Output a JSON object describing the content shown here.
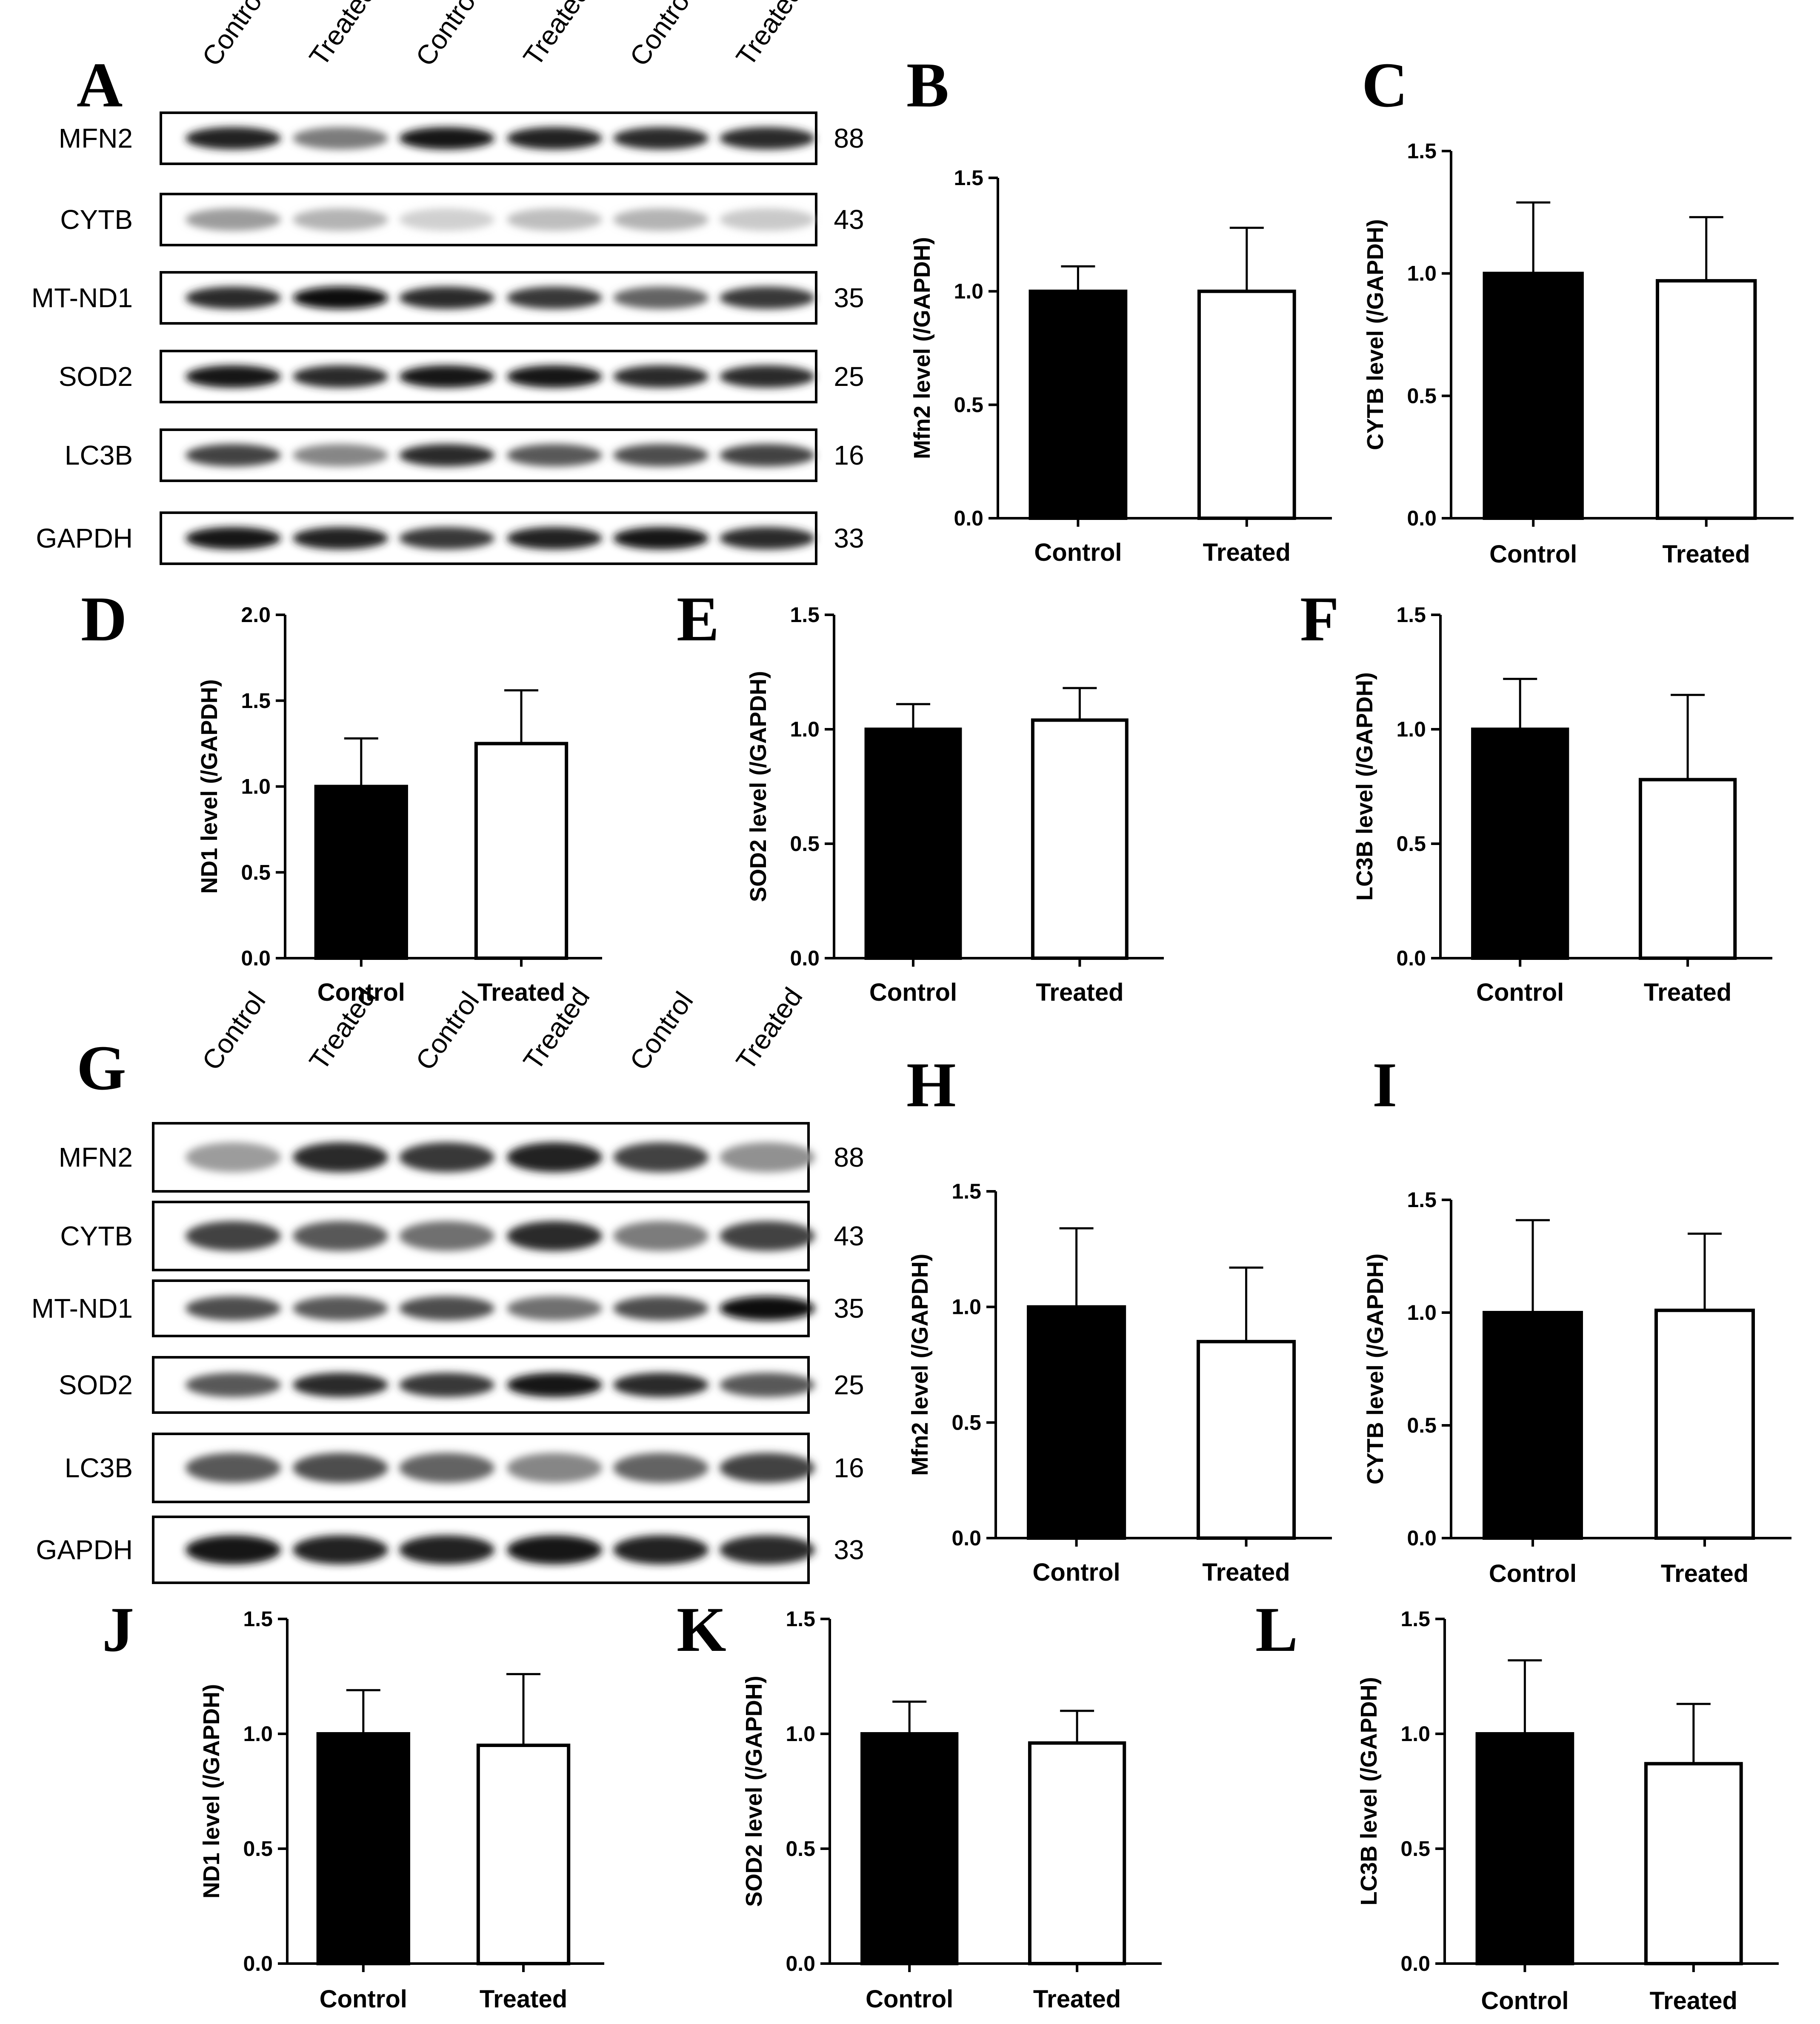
{
  "colors": {
    "control_fill": "#000000",
    "treated_fill": "#ffffff",
    "axis": "#000000"
  },
  "blots": [
    {
      "letter": "A",
      "lanes": [
        "Control",
        "Treated",
        "Control",
        "Treated",
        "Control",
        "Treated"
      ],
      "rows": [
        {
          "protein": "MFN2",
          "mw": "88",
          "intensity": [
            0.9,
            0.5,
            0.95,
            0.9,
            0.85,
            0.85
          ]
        },
        {
          "protein": "CYTB",
          "mw": "43",
          "intensity": [
            0.35,
            0.25,
            0.12,
            0.2,
            0.25,
            0.15
          ]
        },
        {
          "protein": "MT-ND1",
          "mw": "35",
          "intensity": [
            0.85,
            1.0,
            0.85,
            0.8,
            0.6,
            0.8
          ]
        },
        {
          "protein": "SOD2",
          "mw": "25",
          "intensity": [
            0.95,
            0.85,
            0.95,
            0.95,
            0.85,
            0.85
          ]
        },
        {
          "protein": "LC3B",
          "mw": "16",
          "intensity": [
            0.75,
            0.45,
            0.85,
            0.65,
            0.7,
            0.75
          ]
        },
        {
          "protein": "GAPDH",
          "mw": "33",
          "intensity": [
            0.95,
            0.9,
            0.8,
            0.9,
            0.95,
            0.85
          ]
        }
      ]
    },
    {
      "letter": "G",
      "lanes": [
        "Control",
        "Treated",
        "Control",
        "Treated",
        "Control",
        "Treated"
      ],
      "rows": [
        {
          "protein": "MFN2",
          "mw": "88",
          "intensity": [
            0.35,
            0.85,
            0.8,
            0.9,
            0.75,
            0.4
          ]
        },
        {
          "protein": "CYTB",
          "mw": "43",
          "intensity": [
            0.75,
            0.65,
            0.55,
            0.85,
            0.5,
            0.75
          ]
        },
        {
          "protein": "MT-ND1",
          "mw": "35",
          "intensity": [
            0.7,
            0.65,
            0.7,
            0.55,
            0.7,
            1.0
          ]
        },
        {
          "protein": "SOD2",
          "mw": "25",
          "intensity": [
            0.65,
            0.85,
            0.8,
            0.95,
            0.85,
            0.65
          ]
        },
        {
          "protein": "LC3B",
          "mw": "16",
          "intensity": [
            0.65,
            0.7,
            0.6,
            0.45,
            0.6,
            0.75
          ]
        },
        {
          "protein": "GAPDH",
          "mw": "33",
          "intensity": [
            0.95,
            0.9,
            0.9,
            0.95,
            0.9,
            0.85
          ]
        }
      ]
    }
  ],
  "chart_data": [
    {
      "letter": "B",
      "type": "bar",
      "categories": [
        "Control",
        "Treated"
      ],
      "values": [
        1.0,
        1.0
      ],
      "errors": [
        0.11,
        0.28
      ],
      "ylabel": "Mfn2 level (/GAPDH)",
      "ylim": [
        0,
        1.5
      ],
      "yticks": [
        "0.0",
        "0.5",
        "1.0",
        "1.5"
      ]
    },
    {
      "letter": "C",
      "type": "bar",
      "categories": [
        "Control",
        "Treated"
      ],
      "values": [
        1.0,
        0.97
      ],
      "errors": [
        0.29,
        0.26
      ],
      "ylabel": "CYTB level (/GAPDH)",
      "ylim": [
        0,
        1.5
      ],
      "yticks": [
        "0.0",
        "0.5",
        "1.0",
        "1.5"
      ]
    },
    {
      "letter": "D",
      "type": "bar",
      "categories": [
        "Control",
        "Treated"
      ],
      "values": [
        1.0,
        1.25
      ],
      "errors": [
        0.28,
        0.31
      ],
      "ylabel": "ND1 level (/GAPDH)",
      "ylim": [
        0,
        2.0
      ],
      "yticks": [
        "0.0",
        "0.5",
        "1.0",
        "1.5",
        "2.0"
      ]
    },
    {
      "letter": "E",
      "type": "bar",
      "categories": [
        "Control",
        "Treated"
      ],
      "values": [
        1.0,
        1.04
      ],
      "errors": [
        0.11,
        0.14
      ],
      "ylabel": "SOD2 level (/GAPDH)",
      "ylim": [
        0,
        1.5
      ],
      "yticks": [
        "0.0",
        "0.5",
        "1.0",
        "1.5"
      ]
    },
    {
      "letter": "F",
      "type": "bar",
      "categories": [
        "Control",
        "Treated"
      ],
      "values": [
        1.0,
        0.78
      ],
      "errors": [
        0.22,
        0.37
      ],
      "ylabel": "LC3B level (/GAPDH)",
      "ylim": [
        0,
        1.5
      ],
      "yticks": [
        "0.0",
        "0.5",
        "1.0",
        "1.5"
      ]
    },
    {
      "letter": "H",
      "type": "bar",
      "categories": [
        "Control",
        "Treated"
      ],
      "values": [
        1.0,
        0.85
      ],
      "errors": [
        0.34,
        0.32
      ],
      "ylabel": "Mfn2 level (/GAPDH)",
      "ylim": [
        0,
        1.5
      ],
      "yticks": [
        "0.0",
        "0.5",
        "1.0",
        "1.5"
      ]
    },
    {
      "letter": "I",
      "type": "bar",
      "categories": [
        "Control",
        "Treated"
      ],
      "values": [
        1.0,
        1.01
      ],
      "errors": [
        0.41,
        0.34
      ],
      "ylabel": "CYTB level (/GAPDH)",
      "ylim": [
        0,
        1.5
      ],
      "yticks": [
        "0.0",
        "0.5",
        "1.0",
        "1.5"
      ]
    },
    {
      "letter": "J",
      "type": "bar",
      "categories": [
        "Control",
        "Treated"
      ],
      "values": [
        1.0,
        0.95
      ],
      "errors": [
        0.19,
        0.31
      ],
      "ylabel": "ND1 level (/GAPDH)",
      "ylim": [
        0,
        1.5
      ],
      "yticks": [
        "0.0",
        "0.5",
        "1.0",
        "1.5"
      ]
    },
    {
      "letter": "K",
      "type": "bar",
      "categories": [
        "Control",
        "Treated"
      ],
      "values": [
        1.0,
        0.96
      ],
      "errors": [
        0.14,
        0.14
      ],
      "ylabel": "SOD2 level (/GAPDH)",
      "ylim": [
        0,
        1.5
      ],
      "yticks": [
        "0.0",
        "0.5",
        "1.0",
        "1.5"
      ]
    },
    {
      "letter": "L",
      "type": "bar",
      "categories": [
        "Control",
        "Treated"
      ],
      "values": [
        1.0,
        0.87
      ],
      "errors": [
        0.32,
        0.26
      ],
      "ylabel": "LC3B level (/GAPDH)",
      "ylim": [
        0,
        1.5
      ],
      "yticks": [
        "0.0",
        "0.5",
        "1.0",
        "1.5"
      ]
    }
  ]
}
